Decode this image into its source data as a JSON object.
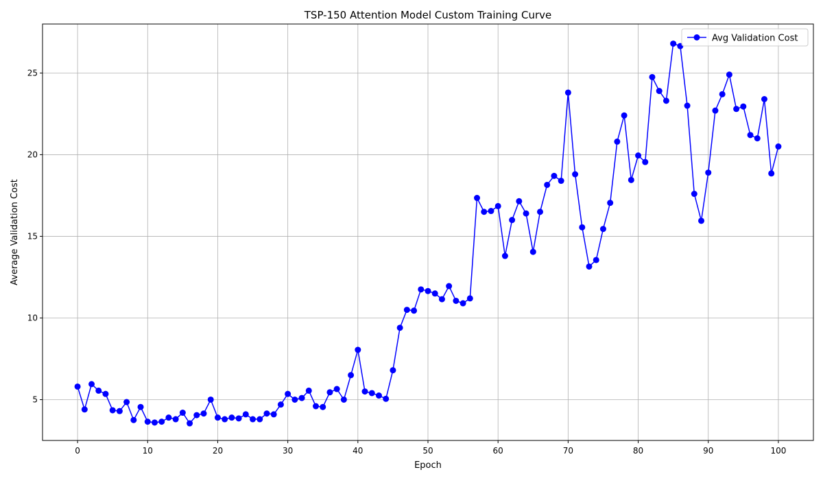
{
  "chart_data": {
    "type": "line",
    "title": "TSP-150 Attention Model Custom Training Curve",
    "xlabel": "Epoch",
    "ylabel": "Average Validation Cost",
    "xlim": [
      -5,
      105
    ],
    "ylim": [
      2.5,
      28
    ],
    "xticks": [
      0,
      10,
      20,
      30,
      40,
      50,
      60,
      70,
      80,
      90,
      100
    ],
    "yticks": [
      5,
      10,
      15,
      20,
      25
    ],
    "grid": true,
    "legend_position": "top-right",
    "series": [
      {
        "name": "Avg Validation Cost",
        "color": "#0000ff",
        "marker": "circle",
        "x": [
          0,
          1,
          2,
          3,
          4,
          5,
          6,
          7,
          8,
          9,
          10,
          11,
          12,
          13,
          14,
          15,
          16,
          17,
          18,
          19,
          20,
          21,
          22,
          23,
          24,
          25,
          26,
          27,
          28,
          29,
          30,
          31,
          32,
          33,
          34,
          35,
          36,
          37,
          38,
          39,
          40,
          41,
          42,
          43,
          44,
          45,
          46,
          47,
          48,
          49,
          50,
          51,
          52,
          53,
          54,
          55,
          56,
          57,
          58,
          59,
          60,
          61,
          62,
          63,
          64,
          65,
          66,
          67,
          68,
          69,
          70,
          71,
          72,
          73,
          74,
          75,
          76,
          77,
          78,
          79,
          80,
          81,
          82,
          83,
          84,
          85,
          86,
          87,
          88,
          89,
          90,
          91,
          92,
          93,
          94,
          95,
          96,
          97,
          98,
          99,
          100
        ],
        "values": [
          5.8,
          4.4,
          5.95,
          5.55,
          5.35,
          4.35,
          4.3,
          4.85,
          3.75,
          4.55,
          3.65,
          3.6,
          3.65,
          3.9,
          3.8,
          4.2,
          3.55,
          4.05,
          4.15,
          5.0,
          3.9,
          3.8,
          3.9,
          3.85,
          4.1,
          3.8,
          3.8,
          4.15,
          4.1,
          4.7,
          5.35,
          5.0,
          5.1,
          5.55,
          4.6,
          4.55,
          5.45,
          5.65,
          5.0,
          6.5,
          8.05,
          5.5,
          5.4,
          5.25,
          5.05,
          6.8,
          9.4,
          10.5,
          10.45,
          11.75,
          11.65,
          11.5,
          11.15,
          11.95,
          11.05,
          10.9,
          11.2,
          17.35,
          16.5,
          16.55,
          16.85,
          13.8,
          16.0,
          17.15,
          16.4,
          14.05,
          16.5,
          18.15,
          18.7,
          18.4,
          23.8,
          18.8,
          15.55,
          13.15,
          13.55,
          15.45,
          17.05,
          20.8,
          22.4,
          18.45,
          19.95,
          19.55,
          24.75,
          23.9,
          23.3,
          26.8,
          26.65,
          23.0,
          17.6,
          15.95,
          18.9,
          22.7,
          23.7,
          24.9,
          22.8,
          22.95,
          21.2,
          21.0,
          23.4,
          18.85,
          20.5
        ]
      }
    ]
  }
}
